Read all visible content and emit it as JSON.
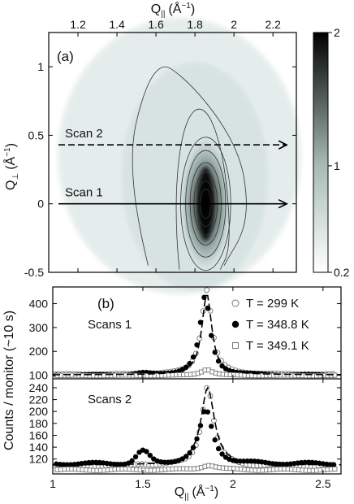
{
  "chart_data": [
    {
      "type": "heatmap",
      "panel_label": "(a)",
      "xlabel": "Q",
      "xlabel_sub": "||",
      "xlabel_unit": "(Å",
      "xlabel_unit_exp": "−1",
      "xlabel_unit_close": ")",
      "ylabel": "Q",
      "ylabel_sub": "⊥",
      "ylabel_unit": "(Å",
      "ylabel_unit_exp": "−1",
      "ylabel_unit_close": ")",
      "xlim": [
        1.05,
        2.32
      ],
      "ylim": [
        -0.5,
        1.25
      ],
      "xticks": [
        1.2,
        1.4,
        1.6,
        1.8,
        2.0,
        2.2
      ],
      "xtick_labels": [
        "1.2",
        "1.4",
        "1.6",
        "1.8",
        "2",
        "2.2"
      ],
      "yticks": [
        -0.5,
        0,
        0.5,
        1
      ],
      "ytick_labels": [
        "-0.5",
        "0",
        "0.5",
        "1"
      ],
      "peak": {
        "center_x": 1.855,
        "center_y": 0.0,
        "sigma_x": 0.045,
        "sigma_y": 0.32
      },
      "scans": [
        {
          "label": "Scan 2",
          "y": 0.43,
          "x_start": 1.05,
          "x_end": 2.3,
          "style": "dashed"
        },
        {
          "label": "Scan 1",
          "y": 0.0,
          "x_start": 1.05,
          "x_end": 2.3,
          "style": "solid"
        }
      ],
      "colorbar": {
        "min": 0.2,
        "max": 2,
        "ticks": [
          0.2,
          1,
          2
        ],
        "tick_labels": [
          "0.2",
          "1",
          "2"
        ],
        "color_low": "#ffffff",
        "color_mid": "#a7bab6",
        "color_high": "#000000"
      }
    },
    {
      "type": "line",
      "panel_label": "(b)",
      "ylabel": "Counts / monitor (~10 s)",
      "xlabel": "Q",
      "xlabel_sub": "||",
      "xlabel_unit": "(Å",
      "xlabel_unit_exp": "−1",
      "xlabel_unit_close": ")",
      "xlim": [
        1.0,
        2.6
      ],
      "xticks": [
        1,
        1.5,
        2,
        2.5
      ],
      "xtick_labels": [
        "1",
        "1.5",
        "2",
        "2.5"
      ],
      "legend": [
        {
          "label": "T = 299 K",
          "marker": "open-circle",
          "line": "none"
        },
        {
          "label": "T = 348.8 K",
          "marker": "filled-circle",
          "line": "dashed"
        },
        {
          "label": "T = 349.1 K",
          "marker": "open-square",
          "line": "none"
        }
      ],
      "subplots": [
        {
          "title": "Scans 1",
          "ylim": [
            85,
            470
          ],
          "yticks": [
            100,
            200,
            300,
            400
          ],
          "ytick_labels": [
            "100",
            "200",
            "300",
            "400"
          ],
          "series": [
            {
              "name": "T = 299 K",
              "baseline": 103,
              "peak_center": 1.86,
              "peak_amp": 355,
              "peak_width": 0.035,
              "bump_amp": 4
            },
            {
              "name": "T = 348.8 K",
              "baseline": 101,
              "peak_center": 1.845,
              "peak_amp": 330,
              "peak_width": 0.035,
              "bump_amp": 6
            },
            {
              "name": "T = 349.1 K",
              "baseline": 99,
              "peak_center": 1.85,
              "peak_amp": 25,
              "peak_width": 0.04,
              "bump_amp": 0
            }
          ],
          "fit": {
            "baseline": 102,
            "peak_center": 1.855,
            "peak_amp": 340,
            "peak_width": 0.033
          }
        },
        {
          "title": "Scans 2",
          "ylim": [
            95,
            255
          ],
          "yticks": [
            120,
            140,
            160,
            180,
            200,
            220,
            240
          ],
          "ytick_labels": [
            "120",
            "140",
            "160",
            "180",
            "200",
            "220",
            "240"
          ],
          "series": [
            {
              "name": "T = 299 K",
              "baseline": 108,
              "peak_center": 1.865,
              "peak_amp": 135,
              "peak_width": 0.04,
              "bump_amp": 4
            },
            {
              "name": "T = 348.8 K",
              "baseline": 112,
              "peak_center": 1.85,
              "peak_amp": 90,
              "peak_width": 0.045,
              "bump_amp": 20
            },
            {
              "name": "T = 349.1 K",
              "baseline": 102,
              "peak_center": 1.86,
              "peak_amp": 8,
              "peak_width": 0.05,
              "bump_amp": 0
            }
          ],
          "fit": {
            "baseline": 110,
            "peak_center": 1.86,
            "peak_amp": 130,
            "peak_width": 0.045
          }
        }
      ]
    }
  ]
}
